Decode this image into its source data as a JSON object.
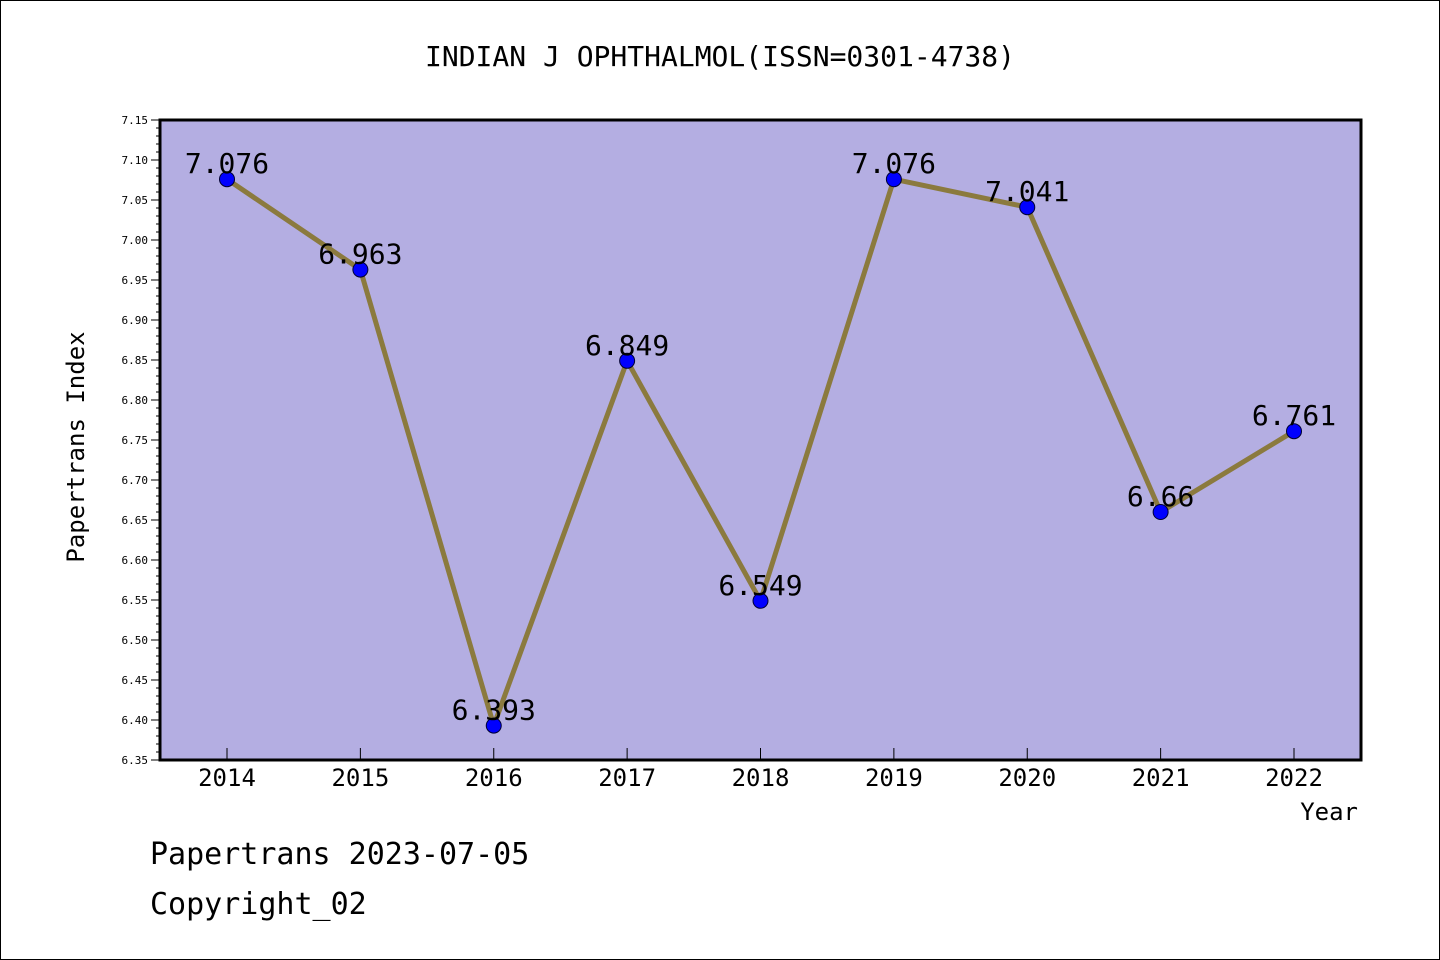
{
  "chart_data": {
    "type": "line",
    "title": "INDIAN J OPHTHALMOL(ISSN=0301-4738)",
    "xlabel": "Year",
    "ylabel": "Papertrans Index",
    "categories": [
      "2014",
      "2015",
      "2016",
      "2017",
      "2018",
      "2019",
      "2020",
      "2021",
      "2022"
    ],
    "values": [
      7.076,
      6.963,
      6.393,
      6.849,
      6.549,
      7.076,
      7.041,
      6.66,
      6.761
    ],
    "data_labels": [
      "7.076",
      "6.963",
      "6.393",
      "6.849",
      "6.549",
      "7.076",
      "7.041",
      "6.66",
      "6.761"
    ],
    "ylim": [
      6.35,
      7.15
    ],
    "yticks": [
      "6.35",
      "6.40",
      "6.45",
      "6.50",
      "6.55",
      "6.60",
      "6.65",
      "6.70",
      "6.75",
      "6.80",
      "6.85",
      "6.90",
      "6.95",
      "7.00",
      "7.05",
      "7.10",
      "7.15"
    ],
    "grid": false,
    "plot_background": "#b4aee2",
    "line_color": "#8b7a3e",
    "marker_color": "#0000ff"
  },
  "footer": {
    "line1": "Papertrans 2023-07-05",
    "line2": "Copyright_02"
  }
}
